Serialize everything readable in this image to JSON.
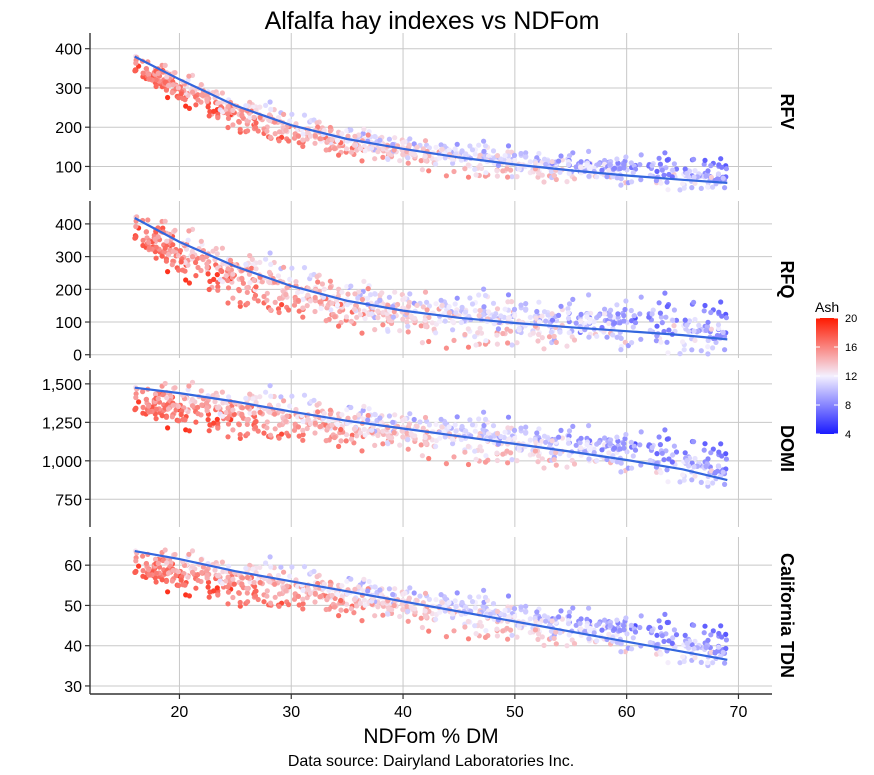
{
  "chart_data": {
    "type": "scatter",
    "title": "Alfalfa hay indexes vs NDFom",
    "xlabel": "NDFom % DM",
    "caption": "Data source: Dairyland Laboratories Inc.",
    "xlim": [
      12,
      73
    ],
    "x_ticks": [
      20,
      30,
      40,
      50,
      60,
      70
    ],
    "x_tick_labels": [
      "20",
      "30",
      "40",
      "50",
      "60",
      "70"
    ],
    "legend": {
      "title": "Ash",
      "position": "right",
      "min": 4,
      "max": 20,
      "ticks": [
        4,
        8,
        12,
        16,
        20
      ],
      "tick_labels": [
        "4",
        "8",
        "12",
        "16",
        "20"
      ],
      "colors": {
        "low": "#1a1aff",
        "mid": "#f4f0ff",
        "high": "#ff1a00"
      }
    },
    "smooth_color": "#3366dd",
    "panels": [
      {
        "name": "RFV",
        "ylim": [
          40,
          440
        ],
        "y_ticks": [
          100,
          200,
          300,
          400
        ],
        "y_tick_labels": [
          "100",
          "200",
          "300",
          "400"
        ],
        "trend": [
          [
            16,
            380
          ],
          [
            20,
            322
          ],
          [
            25,
            255
          ],
          [
            30,
            205
          ],
          [
            35,
            170
          ],
          [
            40,
            145
          ],
          [
            45,
            123
          ],
          [
            50,
            105
          ],
          [
            55,
            90
          ],
          [
            60,
            77
          ],
          [
            65,
            66
          ],
          [
            69,
            58
          ]
        ],
        "noise": 22,
        "ash_effect": -6
      },
      {
        "name": "RFQ",
        "ylim": [
          -10,
          470
        ],
        "y_ticks": [
          0,
          100,
          200,
          300,
          400
        ],
        "y_tick_labels": [
          "0",
          "100",
          "200",
          "300",
          "400"
        ],
        "trend": [
          [
            16,
            418
          ],
          [
            20,
            345
          ],
          [
            25,
            270
          ],
          [
            30,
            210
          ],
          [
            35,
            165
          ],
          [
            40,
            135
          ],
          [
            45,
            113
          ],
          [
            50,
            97
          ],
          [
            55,
            84
          ],
          [
            60,
            72
          ],
          [
            65,
            60
          ],
          [
            69,
            47
          ]
        ],
        "noise": 45,
        "ash_effect": -10
      },
      {
        "name": "DOMI",
        "ylim": [
          570,
          1590
        ],
        "y_ticks": [
          750,
          1000,
          1250,
          1500
        ],
        "y_tick_labels": [
          "750",
          "1,000",
          "1,250",
          "1,500"
        ],
        "trend": [
          [
            16,
            1475
          ],
          [
            20,
            1440
          ],
          [
            25,
            1385
          ],
          [
            30,
            1320
          ],
          [
            35,
            1260
          ],
          [
            40,
            1210
          ],
          [
            45,
            1160
          ],
          [
            50,
            1110
          ],
          [
            55,
            1060
          ],
          [
            60,
            1005
          ],
          [
            65,
            945
          ],
          [
            69,
            875
          ]
        ],
        "noise": 75,
        "ash_effect": -24
      },
      {
        "name": "California TDN",
        "ylim": [
          28,
          67
        ],
        "y_ticks": [
          30,
          40,
          50,
          60
        ],
        "y_tick_labels": [
          "30",
          "40",
          "50",
          "60"
        ],
        "trend": [
          [
            16,
            63.5
          ],
          [
            20,
            61.5
          ],
          [
            25,
            58.5
          ],
          [
            30,
            56
          ],
          [
            35,
            53.5
          ],
          [
            40,
            51
          ],
          [
            45,
            48.5
          ],
          [
            50,
            46
          ],
          [
            55,
            43.5
          ],
          [
            60,
            41
          ],
          [
            65,
            38.5
          ],
          [
            69,
            36.5
          ]
        ],
        "noise": 2.6,
        "ash_effect": -0.9
      }
    ]
  }
}
